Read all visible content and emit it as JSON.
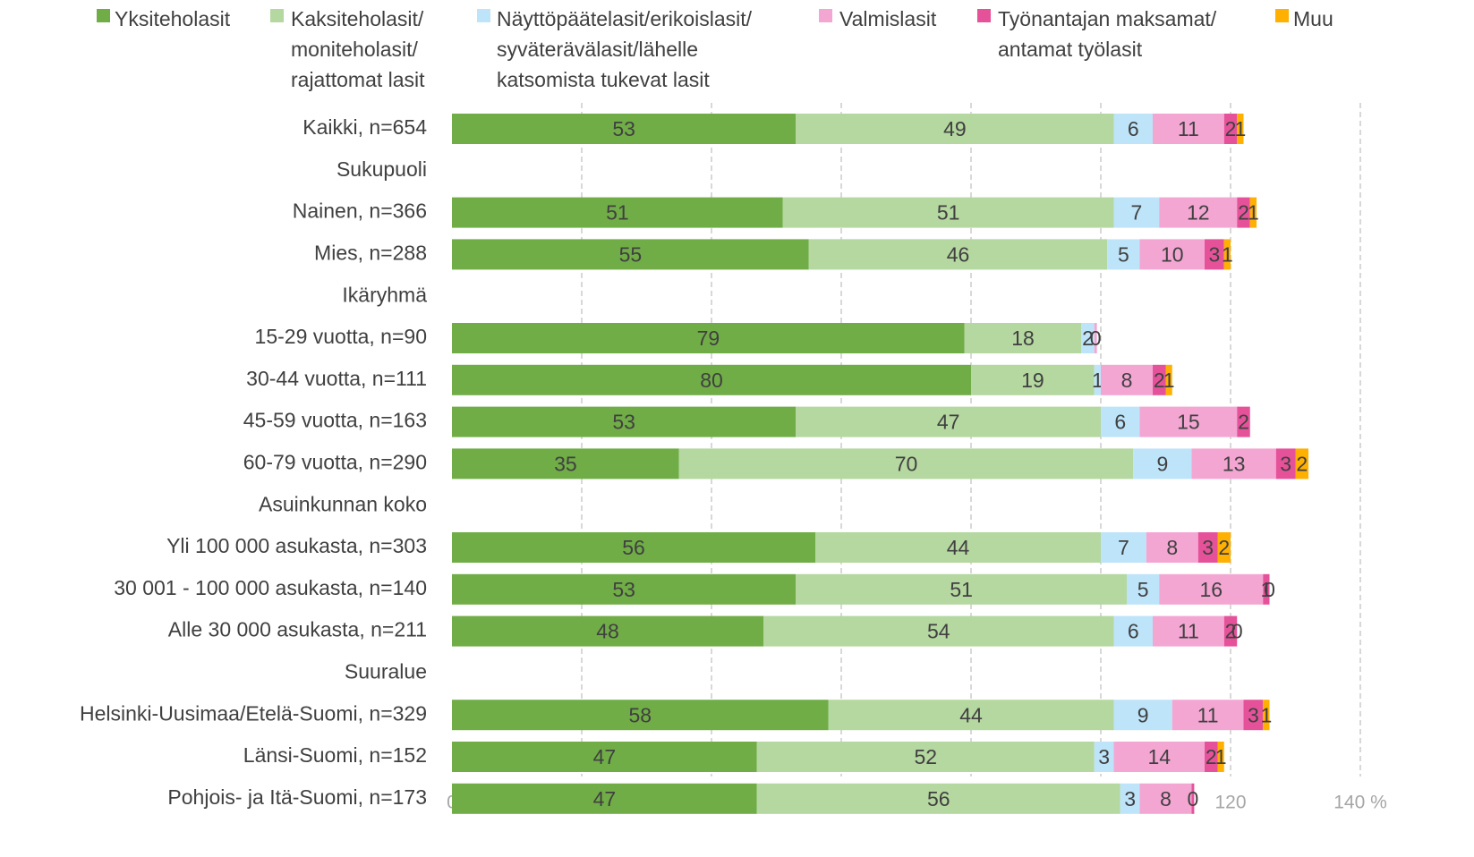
{
  "chart_data": {
    "type": "stacked-bar-horizontal",
    "categories": [
      "Kaikki, n=654",
      "Sukupuoli",
      "Nainen, n=366",
      "Mies, n=288",
      "Ikäryhmä",
      "15-29 vuotta, n=90",
      "30-44 vuotta, n=111",
      "45-59 vuotta, n=163",
      "60-79 vuotta, n=290",
      "Asuinkunnan koko",
      "Yli 100 000 asukasta, n=303",
      "30 001 - 100 000 asukasta, n=140",
      "Alle 30 000 asukasta, n=211",
      "Suuralue",
      "Helsinki-Uusimaa/Etelä-Suomi, n=329",
      "Länsi-Suomi, n=152",
      "Pohjois- ja Itä-Suomi, n=173"
    ],
    "series": [
      {
        "name": "Yksiteholasit",
        "color": "#70ad47",
        "values": [
          53,
          null,
          51,
          55,
          null,
          79,
          80,
          53,
          35,
          null,
          56,
          53,
          48,
          null,
          58,
          47,
          47
        ]
      },
      {
        "name": "Kaksiteholasit/\nmoniteholasit/\nrajattomat lasit",
        "color": "#b5d7a0",
        "values": [
          49,
          null,
          51,
          46,
          null,
          18,
          19,
          47,
          70,
          null,
          44,
          51,
          54,
          null,
          44,
          52,
          56
        ]
      },
      {
        "name": "Näyttöpäätelasit/erikoislasit/\nsyväterävälasit/lähelle\nkatsomista tukevat lasit",
        "color": "#bde4f9",
        "values": [
          6,
          null,
          7,
          5,
          null,
          2,
          1,
          6,
          9,
          null,
          7,
          5,
          6,
          null,
          9,
          3,
          3
        ]
      },
      {
        "name": "Valmislasit",
        "color": "#f4a6d3",
        "values": [
          11,
          null,
          12,
          10,
          null,
          0.4,
          8,
          15,
          13,
          null,
          8,
          16,
          11,
          null,
          11,
          14,
          8
        ],
        "value_labels": [
          "11",
          null,
          "12",
          "10",
          null,
          "0",
          "8",
          "15",
          "13",
          null,
          "8",
          "16",
          "11",
          null,
          "11",
          "14",
          "8"
        ]
      },
      {
        "name": "Työnantajan maksamat/\nantamat työlasit",
        "color": "#e6529a",
        "values": [
          2,
          null,
          2,
          3,
          null,
          null,
          2,
          2,
          3,
          null,
          3,
          1,
          2,
          null,
          3,
          2,
          0.4
        ],
        "value_labels": [
          "2",
          null,
          "2",
          "3",
          null,
          null,
          "2",
          "2",
          "3",
          null,
          "3",
          "1",
          "2",
          null,
          "3",
          "2",
          "0"
        ]
      },
      {
        "name": "Muu",
        "color": "#ffb000",
        "values": [
          1,
          null,
          1,
          1,
          null,
          null,
          1,
          null,
          2,
          null,
          2,
          0,
          0,
          null,
          1,
          1,
          null
        ]
      }
    ],
    "xlim": [
      0,
      140
    ],
    "xticks": [
      0,
      20,
      40,
      60,
      80,
      100,
      120,
      {
        "value": 140,
        "label": "140 %"
      }
    ],
    "grid": true
  }
}
